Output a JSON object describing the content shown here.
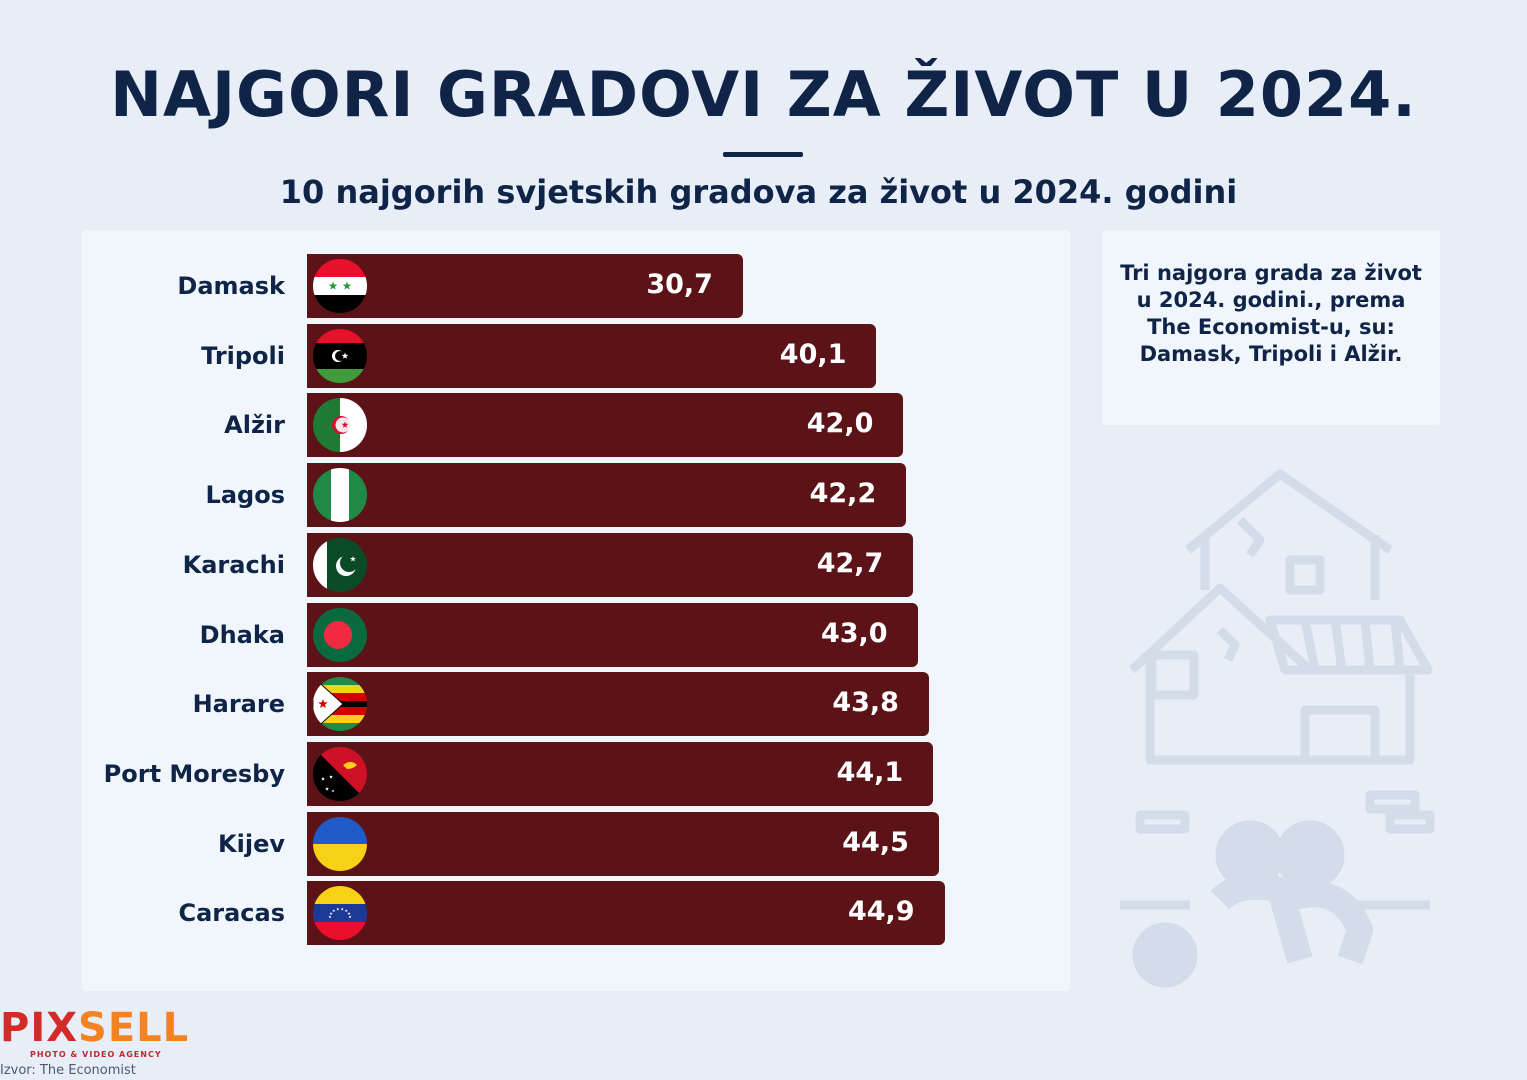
{
  "title": "NAJGORI GRADOVI ZA ŽIVOT U 2024.",
  "subtitle": "10 najgorih svjetskih gradova za život u 2024. godini",
  "note": "Tri najgora grada za život u 2024. godini., prema The Economist-u, su: Damask, Tripoli i Alžir.",
  "logo": {
    "part1": "PIX",
    "part2": "SELL",
    "tagline": "PHOTO & VIDEO AGENCY"
  },
  "source": "Izvor: The Economist",
  "colors": {
    "bar": "#5c1318",
    "title": "#0f2446",
    "background": "#e8eef8"
  },
  "chart_data": {
    "type": "bar",
    "orientation": "horizontal",
    "title": "10 najgorih svjetskih gradova za život u 2024. godini",
    "categories": [
      "Damask",
      "Tripoli",
      "Alžir",
      "Lagos",
      "Karachi",
      "Dhaka",
      "Harare",
      "Port Moresby",
      "Kijev",
      "Caracas"
    ],
    "values": [
      30.7,
      40.1,
      42.0,
      42.2,
      42.7,
      43.0,
      43.8,
      44.1,
      44.5,
      44.9
    ],
    "value_labels": [
      "30,7",
      "40,1",
      "42,0",
      "42,2",
      "42,7",
      "43,0",
      "43,8",
      "44,1",
      "44,5",
      "44,9"
    ],
    "flags": [
      "syria",
      "libya",
      "algeria",
      "nigeria",
      "pakistan",
      "bangladesh",
      "zimbabwe",
      "papua-new-guinea",
      "ukraine",
      "venezuela"
    ],
    "xlim": [
      0,
      50
    ]
  }
}
